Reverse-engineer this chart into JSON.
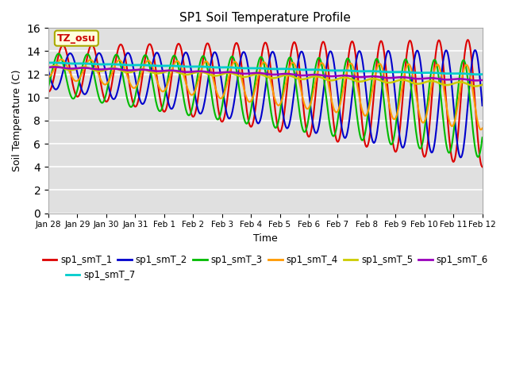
{
  "title": "SP1 Soil Temperature Profile",
  "xlabel": "Time",
  "ylabel": "Soil Temperature (C)",
  "ylim": [
    0,
    16
  ],
  "yticks": [
    0,
    2,
    4,
    6,
    8,
    10,
    12,
    14,
    16
  ],
  "annotation_text": "TZ_osu",
  "annotation_color": "#cc0000",
  "annotation_bg": "#ffffdd",
  "annotation_border": "#aaaa00",
  "series_colors": {
    "sp1_smT_1": "#dd0000",
    "sp1_smT_2": "#0000cc",
    "sp1_smT_3": "#00bb00",
    "sp1_smT_4": "#ff9900",
    "sp1_smT_5": "#cccc00",
    "sp1_smT_6": "#9900bb",
    "sp1_smT_7": "#00cccc"
  },
  "bg_color": "#e0e0e0",
  "grid_color": "#ffffff",
  "fig_bg": "#ffffff",
  "xtick_labels": [
    "Jan 28",
    "Jan 29",
    "Jan 30",
    "Jan 31",
    "Feb 1",
    "Feb 2",
    "Feb 3",
    "Feb 4",
    "Feb 5",
    "Feb 6",
    "Feb 7",
    "Feb 8",
    "Feb 9",
    "Feb 10",
    "Feb 11",
    "Feb 12"
  ]
}
